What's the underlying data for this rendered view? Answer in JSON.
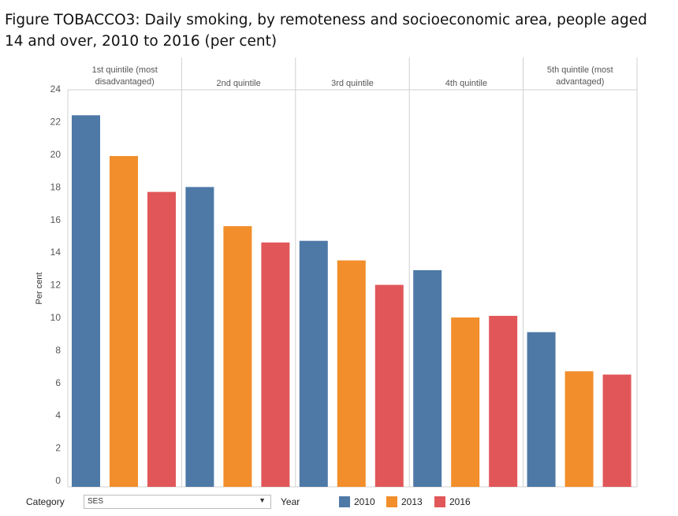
{
  "title": "Figure TOBACCO3: Daily smoking, by remoteness and socioeconomic area, people aged 14 and over, 2010 to 2016 (per cent)",
  "controls": {
    "category_label": "Category",
    "category_value": "SES",
    "caret": "▼",
    "year_label": "Year"
  },
  "colors": {
    "2010": "#4e79a7",
    "2013": "#f28e2b",
    "2016": "#e15759"
  },
  "chart_data": {
    "type": "bar",
    "ylabel": "Per cent",
    "ylim": [
      0,
      24
    ],
    "yticks": [
      0,
      2,
      4,
      6,
      8,
      10,
      12,
      14,
      16,
      18,
      20,
      22,
      24
    ],
    "grid": false,
    "legend": "bottom",
    "categories": [
      "1st quintile (most disadvantaged)",
      "2nd quintile",
      "3rd quintile",
      "4th quintile",
      "5th quintile (most advantaged)"
    ],
    "series": [
      {
        "name": "2010",
        "values": [
          22.4,
          18.0,
          14.7,
          12.9,
          9.1
        ]
      },
      {
        "name": "2013",
        "values": [
          19.9,
          15.6,
          13.5,
          10.0,
          6.7
        ]
      },
      {
        "name": "2016",
        "values": [
          17.7,
          14.6,
          12.0,
          10.1,
          6.5
        ]
      }
    ]
  }
}
